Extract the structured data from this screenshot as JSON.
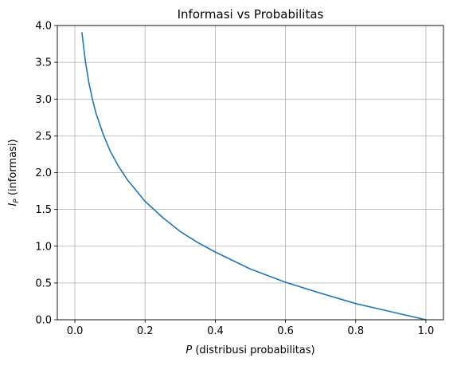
{
  "chart_data": {
    "type": "line",
    "title": "Informasi vs Probabilitas",
    "xlabel": {
      "var": "P",
      "text": " (distribusi probabilitas)"
    },
    "ylabel": {
      "var": "I",
      "sub": "P",
      "text": " (informasi)"
    },
    "xlim": [
      -0.05,
      1.05
    ],
    "ylim": [
      0,
      4
    ],
    "xticks": [
      "0.0",
      "0.2",
      "0.4",
      "0.6",
      "0.8",
      "1.0"
    ],
    "yticks": [
      "0.0",
      "0.5",
      "1.0",
      "1.5",
      "2.0",
      "2.5",
      "3.0",
      "3.5",
      "4.0"
    ],
    "grid": true,
    "line_color": "#1f77b4",
    "series": [
      {
        "x": [
          0.02,
          0.03,
          0.04,
          0.05,
          0.06,
          0.08,
          0.1,
          0.125,
          0.15,
          0.2,
          0.25,
          0.3,
          0.35,
          0.4,
          0.5,
          0.6,
          0.7,
          0.8,
          0.9,
          1.0
        ],
        "y": [
          3.91,
          3.51,
          3.22,
          3.0,
          2.81,
          2.53,
          2.3,
          2.08,
          1.9,
          1.61,
          1.39,
          1.2,
          1.05,
          0.92,
          0.69,
          0.51,
          0.36,
          0.22,
          0.11,
          0.0
        ]
      }
    ]
  }
}
